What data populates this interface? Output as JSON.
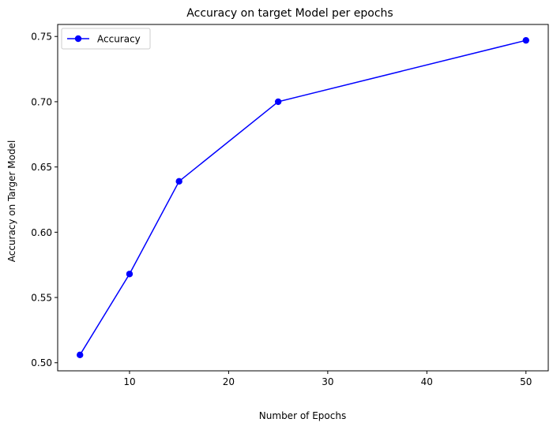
{
  "chart_data": {
    "type": "line",
    "title": "Accuracy on target Model per epochs",
    "xlabel": "Number of Epochs",
    "ylabel": "Accuracy on Targer Model",
    "xlim": [
      2.75,
      52.25
    ],
    "ylim": [
      0.4938,
      0.7592
    ],
    "x_ticks": [
      10,
      20,
      30,
      40,
      50
    ],
    "y_ticks": [
      0.5,
      0.55,
      0.6,
      0.65,
      0.7,
      0.75
    ],
    "x_tick_labels": [
      "10",
      "20",
      "30",
      "40",
      "50"
    ],
    "y_tick_labels": [
      "0.50",
      "0.55",
      "0.60",
      "0.65",
      "0.70",
      "0.75"
    ],
    "grid": false,
    "legend_position": "upper-left",
    "series": [
      {
        "name": "Accuracy",
        "color": "#0000ff",
        "marker": "circle",
        "x": [
          5,
          10,
          15,
          25,
          50
        ],
        "y": [
          0.506,
          0.568,
          0.639,
          0.7,
          0.747
        ]
      }
    ]
  }
}
